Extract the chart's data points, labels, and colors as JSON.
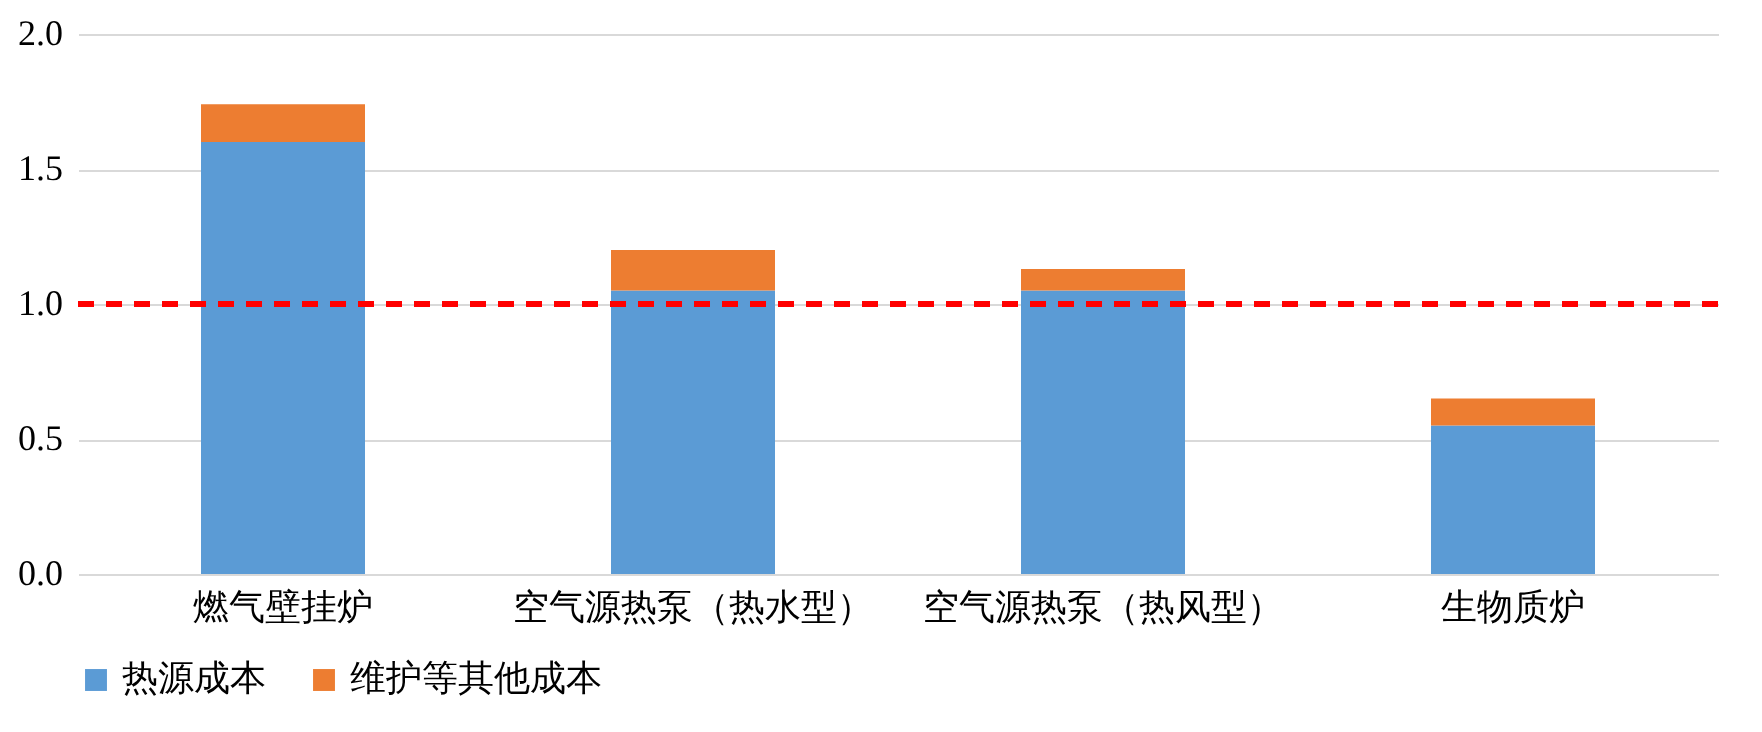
{
  "chart_data": {
    "type": "bar",
    "stacked": true,
    "categories": [
      "燃气壁挂炉",
      "空气源热泵（热水型）",
      "空气源热泵（热风型）",
      "生物质炉"
    ],
    "series": [
      {
        "name": "热源成本",
        "color": "#5b9bd5",
        "values": [
          1.6,
          1.05,
          1.05,
          0.55
        ]
      },
      {
        "name": "维护等其他成本",
        "color": "#ed7d31",
        "values": [
          0.14,
          0.15,
          0.08,
          0.1
        ]
      }
    ],
    "ylim": [
      0,
      2
    ],
    "yticks": [
      {
        "value": 0,
        "label": "0.0"
      },
      {
        "value": 0.5,
        "label": "0.5"
      },
      {
        "value": 1,
        "label": "1.0"
      },
      {
        "value": 1.5,
        "label": "1.5"
      },
      {
        "value": 2,
        "label": "2.0"
      }
    ],
    "grid": "y",
    "legend": "bottom",
    "ref_lines": [
      {
        "axis": "y",
        "value": 1,
        "color": "#ff0000",
        "line_style": "dashed"
      }
    ]
  }
}
